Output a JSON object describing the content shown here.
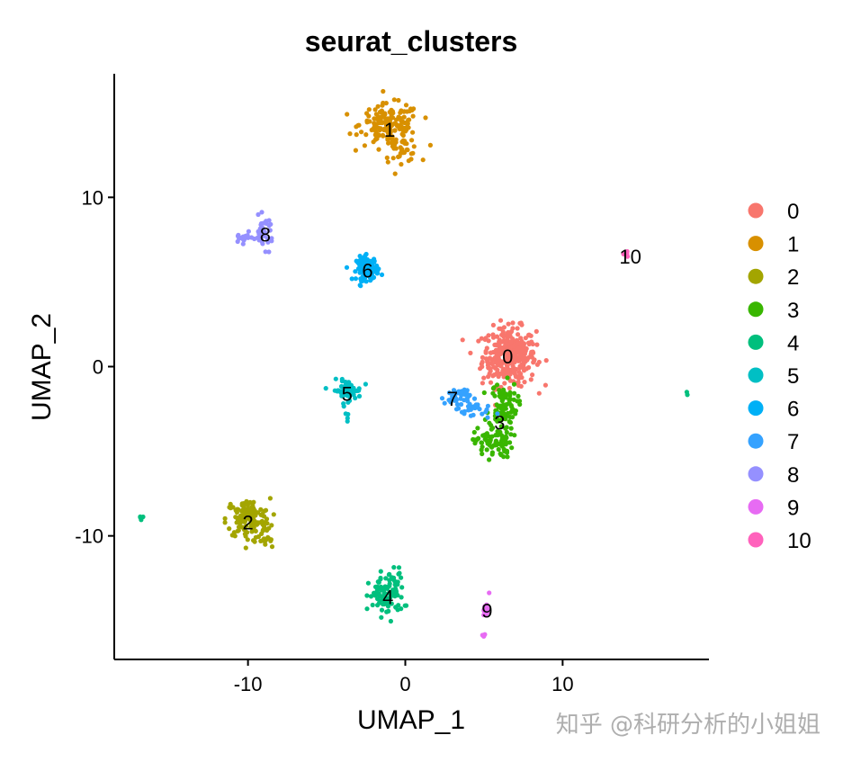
{
  "chart_data": {
    "type": "scatter",
    "title": "seurat_clusters",
    "xlabel": "UMAP_1",
    "ylabel": "UMAP_2",
    "xlim": [
      -18.5,
      19.3
    ],
    "ylim": [
      -17.3,
      17.3
    ],
    "x_ticks": [
      -10,
      0,
      10
    ],
    "y_ticks": [
      -10,
      0,
      10
    ],
    "x_tick_labels": [
      "-10",
      "0",
      "10"
    ],
    "y_tick_labels": [
      "-10",
      "0",
      "10"
    ],
    "grid": false,
    "legend_placement": "right",
    "clusters": [
      {
        "name": "0",
        "color": "#F8766D",
        "label_x": 6.5,
        "label_y": 0.6
      },
      {
        "name": "1",
        "color": "#D89000",
        "label_x": -1.0,
        "label_y": 14.0
      },
      {
        "name": "2",
        "color": "#A3A500",
        "label_x": -10.0,
        "label_y": -9.2
      },
      {
        "name": "3",
        "color": "#39B600",
        "label_x": 6.0,
        "label_y": -3.3
      },
      {
        "name": "4",
        "color": "#00BF7D",
        "label_x": -1.1,
        "label_y": -13.6
      },
      {
        "name": "5",
        "color": "#00BFC4",
        "label_x": -3.7,
        "label_y": -1.6
      },
      {
        "name": "6",
        "color": "#00B0F6",
        "label_x": -2.4,
        "label_y": 5.7
      },
      {
        "name": "7",
        "color": "#35A2FF",
        "label_x": 3.0,
        "label_y": -1.9
      },
      {
        "name": "8",
        "color": "#9590FF",
        "label_x": -8.9,
        "label_y": 7.8
      },
      {
        "name": "9",
        "color": "#E76BF3",
        "label_x": 5.2,
        "label_y": -14.4
      },
      {
        "name": "10",
        "color": "#FF62BC",
        "label_x": 14.3,
        "label_y": 6.5
      }
    ],
    "points": [
      {
        "cluster": "0",
        "cx": 6.6,
        "cy": 0.6,
        "sx": 0.85,
        "sy": 0.85,
        "n": 340
      },
      {
        "cluster": "1",
        "cx": -1.0,
        "cy": 14.3,
        "sx": 0.95,
        "sy": 0.6,
        "n": 160
      },
      {
        "cluster": "1",
        "cx": -0.3,
        "cy": 12.8,
        "sx": 0.6,
        "sy": 0.35,
        "n": 40
      },
      {
        "cluster": "2",
        "cx": -10.0,
        "cy": -9.0,
        "sx": 0.7,
        "sy": 0.6,
        "n": 130
      },
      {
        "cluster": "2",
        "cx": -9.0,
        "cy": -10.3,
        "sx": 0.35,
        "sy": 0.35,
        "n": 20
      },
      {
        "cluster": "3",
        "cx": 6.2,
        "cy": -2.3,
        "sx": 0.45,
        "sy": 0.7,
        "n": 90
      },
      {
        "cluster": "3",
        "cx": 5.6,
        "cy": -4.5,
        "sx": 0.6,
        "sy": 0.45,
        "n": 80
      },
      {
        "cluster": "4",
        "cx": -1.2,
        "cy": -13.6,
        "sx": 0.55,
        "sy": 0.55,
        "n": 80
      },
      {
        "cluster": "4",
        "cx": -0.8,
        "cy": -12.7,
        "sx": 0.4,
        "sy": 0.5,
        "n": 25
      },
      {
        "cluster": "4",
        "cx": -16.8,
        "cy": -8.9,
        "sx": 0.08,
        "sy": 0.08,
        "n": 4
      },
      {
        "cluster": "4",
        "cx": 17.8,
        "cy": -1.6,
        "sx": 0.06,
        "sy": 0.06,
        "n": 2
      },
      {
        "cluster": "5",
        "cx": -3.7,
        "cy": -1.4,
        "sx": 0.45,
        "sy": 0.3,
        "n": 60
      },
      {
        "cluster": "5",
        "cx": -3.7,
        "cy": -3.1,
        "sx": 0.05,
        "sy": 0.2,
        "n": 4
      },
      {
        "cluster": "6",
        "cx": -2.4,
        "cy": 5.8,
        "sx": 0.35,
        "sy": 0.35,
        "n": 110
      },
      {
        "cluster": "7",
        "cx": 3.3,
        "cy": -1.8,
        "sx": 0.4,
        "sy": 0.3,
        "n": 45
      },
      {
        "cluster": "7",
        "cx": 4.5,
        "cy": -2.6,
        "sx": 0.5,
        "sy": 0.25,
        "n": 25
      },
      {
        "cluster": "8",
        "cx": -10.3,
        "cy": 7.6,
        "sx": 0.3,
        "sy": 0.15,
        "n": 18
      },
      {
        "cluster": "8",
        "cx": -9.0,
        "cy": 7.9,
        "sx": 0.3,
        "sy": 0.45,
        "n": 40
      },
      {
        "cluster": "9",
        "cx": 5.2,
        "cy": -14.4,
        "sx": 0.08,
        "sy": 0.45,
        "n": 12
      },
      {
        "cluster": "9",
        "cx": 5.0,
        "cy": -15.9,
        "sx": 0.06,
        "sy": 0.08,
        "n": 4
      },
      {
        "cluster": "10",
        "cx": 14.0,
        "cy": 6.6,
        "sx": 0.12,
        "sy": 0.07,
        "n": 5
      }
    ]
  },
  "watermark": {
    "text": "知乎 @科研分析的小姐姐"
  }
}
